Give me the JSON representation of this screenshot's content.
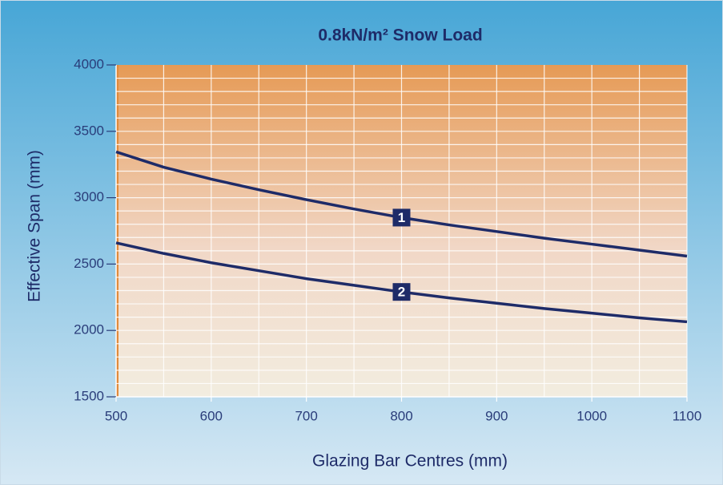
{
  "chart_data": {
    "type": "line",
    "title": "0.8kN/m² Snow Load",
    "x_label": "Glazing Bar Centres (mm)",
    "y_label": "Effective Span (mm)",
    "x": [
      500,
      550,
      600,
      650,
      700,
      750,
      800,
      850,
      900,
      950,
      1000,
      1050,
      1100
    ],
    "series": [
      {
        "name": "1",
        "color": "#1e2b68",
        "values": [
          3345,
          3230,
          3140,
          3060,
          2985,
          2915,
          2850,
          2795,
          2745,
          2695,
          2650,
          2605,
          2560
        ]
      },
      {
        "name": "2",
        "color": "#1e2b68",
        "values": [
          2660,
          2580,
          2510,
          2450,
          2390,
          2340,
          2290,
          2245,
          2205,
          2165,
          2130,
          2095,
          2065
        ]
      }
    ],
    "xlim": [
      500,
      1100
    ],
    "xticks": [
      500,
      600,
      700,
      800,
      900,
      1000,
      1100
    ],
    "ylim": [
      1500,
      4000
    ],
    "yticks": [
      1500,
      2000,
      2500,
      3000,
      3500,
      4000
    ],
    "xgrid": [
      550,
      600,
      650,
      700,
      750,
      800,
      850,
      900,
      950,
      1000,
      1050,
      1100
    ],
    "ygrid": [
      1600,
      1700,
      1800,
      1900,
      2000,
      2100,
      2200,
      2300,
      2400,
      2500,
      2600,
      2700,
      2800,
      2900,
      3000,
      3100,
      3200,
      3300,
      3400,
      3500,
      3600,
      3700,
      3800,
      3900
    ],
    "grid": true
  }
}
